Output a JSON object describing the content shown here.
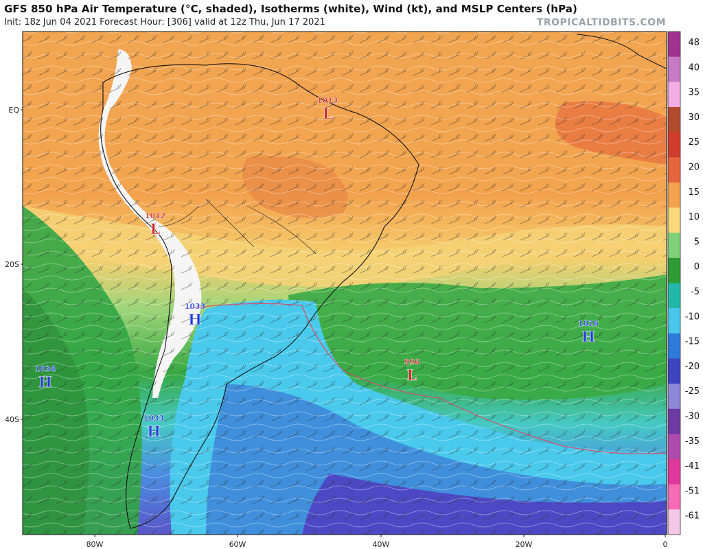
{
  "header": {
    "title": "GFS 850 hPa Air Temperature (°C, shaded), Isotherms (white), Wind (kt), and MSLP Centers (hPa)",
    "subtitle": "Init: 18z Jun 04 2021   Forecast Hour: [306]   valid at 12z Thu, Jun 17 2021",
    "watermark": "TROPICALTIDBITS.COM"
  },
  "colorbar": {
    "labels": [
      "48",
      "40",
      "35",
      "30",
      "25",
      "20",
      "15",
      "10",
      "5",
      "0",
      "-5",
      "-10",
      "-15",
      "-20",
      "-25",
      "-30",
      "-35",
      "-41",
      "-51",
      "-61"
    ],
    "colors": [
      "#a1338f",
      "#c77bc4",
      "#f3aee3",
      "#b24a2e",
      "#d23c2a",
      "#e7653a",
      "#f4a24d",
      "#f8d878",
      "#7ed17a",
      "#2f9b34",
      "#22b8a8",
      "#48c6ec",
      "#2c7ad9",
      "#3e44c0",
      "#8e86d6",
      "#6d3aa4",
      "#b04bae",
      "#e0389a",
      "#f86ab5",
      "#f5c9e6"
    ]
  },
  "axes": {
    "lat_labels": [
      "EQ",
      "20S",
      "40S"
    ],
    "lon_labels": [
      "80W",
      "60W",
      "40W",
      "20W",
      "0"
    ]
  },
  "pressure_centers": [
    {
      "type": "L",
      "value": "1013",
      "color": "#d0242b"
    },
    {
      "type": "L",
      "value": "1012",
      "color": "#d0242b"
    },
    {
      "type": "H",
      "value": "1033",
      "color": "#1e3dd8"
    },
    {
      "type": "H",
      "value": "1026",
      "color": "#1e3dd8"
    },
    {
      "type": "H",
      "value": "1034",
      "color": "#1e3dd8"
    },
    {
      "type": "L",
      "value": "996",
      "color": "#d0242b"
    },
    {
      "type": "H",
      "value": "1033",
      "color": "#1e3dd8"
    }
  ]
}
